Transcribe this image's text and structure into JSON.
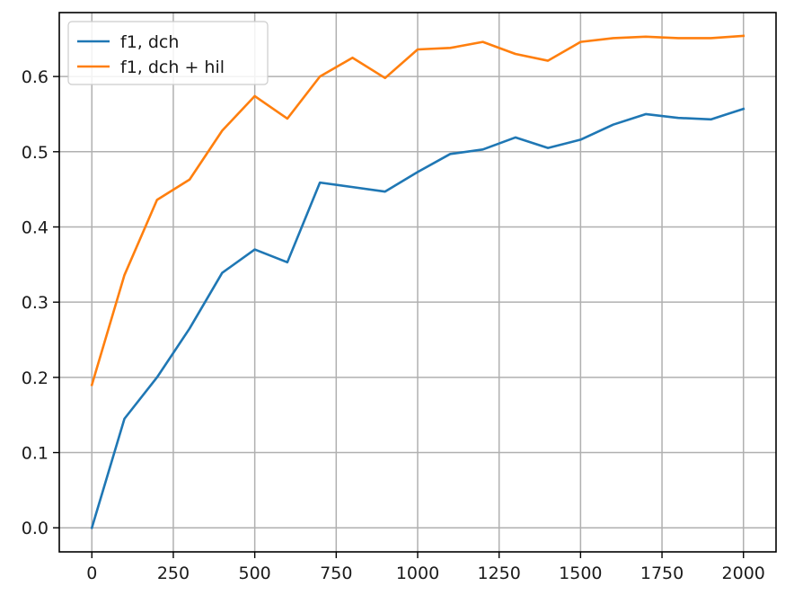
{
  "chart_data": {
    "type": "line",
    "title": "",
    "xlabel": "",
    "ylabel": "",
    "xlim": [
      -100,
      2100
    ],
    "ylim": [
      -0.032,
      0.685
    ],
    "grid": true,
    "legend_position": "top-left",
    "x_ticks": [
      0,
      250,
      500,
      750,
      1000,
      1250,
      1500,
      1750,
      2000
    ],
    "x_tick_labels": [
      "0",
      "250",
      "500",
      "750",
      "1000",
      "1250",
      "1500",
      "1750",
      "2000"
    ],
    "y_ticks": [
      0.0,
      0.1,
      0.2,
      0.3,
      0.4,
      0.5,
      0.6
    ],
    "y_tick_labels": [
      "0.0",
      "0.1",
      "0.2",
      "0.3",
      "0.4",
      "0.5",
      "0.6"
    ],
    "x": [
      0,
      100,
      200,
      300,
      400,
      500,
      600,
      700,
      800,
      900,
      1000,
      1100,
      1200,
      1300,
      1400,
      1500,
      1600,
      1700,
      1800,
      1900,
      2000
    ],
    "series": [
      {
        "name": "f1, dch",
        "color": "#1f77b4",
        "values": [
          0.0,
          0.145,
          0.2,
          0.265,
          0.339,
          0.37,
          0.353,
          0.459,
          0.453,
          0.447,
          0.473,
          0.497,
          0.503,
          0.519,
          0.505,
          0.516,
          0.536,
          0.55,
          0.545,
          0.543,
          0.557
        ]
      },
      {
        "name": "f1, dch + hil",
        "color": "#ff7f0e",
        "values": [
          0.19,
          0.336,
          0.436,
          0.463,
          0.528,
          0.574,
          0.544,
          0.6,
          0.625,
          0.598,
          0.636,
          0.638,
          0.646,
          0.63,
          0.621,
          0.646,
          0.651,
          0.653,
          0.651,
          0.651,
          0.654
        ]
      }
    ]
  }
}
